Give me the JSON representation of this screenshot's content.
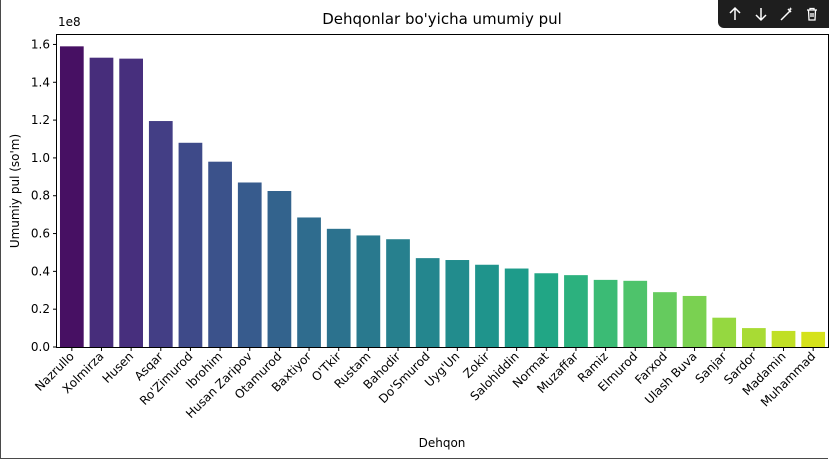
{
  "toolbar": {
    "icons": [
      "arrow-up-icon",
      "arrow-down-icon",
      "magic-wand-icon",
      "trash-icon"
    ]
  },
  "chart_data": {
    "type": "bar",
    "title": "Dehqonlar bo'yicha umumiy pul",
    "xlabel": "Dehqon",
    "ylabel": "Umumiy pul (so'm)",
    "y_offset_label": "1e8",
    "ylim": [
      0,
      1.65
    ],
    "yticks": [
      0.0,
      0.2,
      0.4,
      0.6,
      0.8,
      1.0,
      1.2,
      1.4,
      1.6
    ],
    "ytick_labels": [
      "0.0",
      "0.2",
      "0.4",
      "0.6",
      "0.8",
      "1.0",
      "1.2",
      "1.4",
      "1.6"
    ],
    "grid": false,
    "palette": "viridis",
    "categories": [
      "Nazrullo",
      "Xolmirza",
      "Husen",
      "Asqar",
      "Ro'Zimurod",
      "Ibrohim",
      "Husan Zaripov",
      "Otamurod",
      "Baxtiyor",
      "O'Tkir",
      "Rustam",
      "Bahodir",
      "Do'Smurod",
      "Uyg'Un",
      "Zokir",
      "Salohiddin",
      "Normat",
      "Muzaffar",
      "Ramiz",
      "Elmurod",
      "Farxod",
      "Ulash Buva",
      "Sanjar",
      "Sardor",
      "Madamin",
      "Muhammad"
    ],
    "values": [
      1.59,
      1.53,
      1.525,
      1.195,
      1.08,
      0.98,
      0.87,
      0.825,
      0.685,
      0.625,
      0.59,
      0.57,
      0.47,
      0.46,
      0.435,
      0.415,
      0.39,
      0.38,
      0.355,
      0.35,
      0.29,
      0.27,
      0.155,
      0.1,
      0.085,
      0.08
    ],
    "colors": [
      "#471063",
      "#472D7B",
      "#472F7D",
      "#433E85",
      "#3E4A89",
      "#3B528B",
      "#375B8D",
      "#33638D",
      "#2F6C8E",
      "#2C728E",
      "#29798E",
      "#27808E",
      "#24868E",
      "#228C8D",
      "#1F948C",
      "#1E9B8A",
      "#21A685",
      "#2CB17E",
      "#3BBB75",
      "#4EC36B",
      "#65CB5E",
      "#7AD151",
      "#95D840",
      "#A8DB34",
      "#C0DF25",
      "#D5E21A"
    ]
  }
}
